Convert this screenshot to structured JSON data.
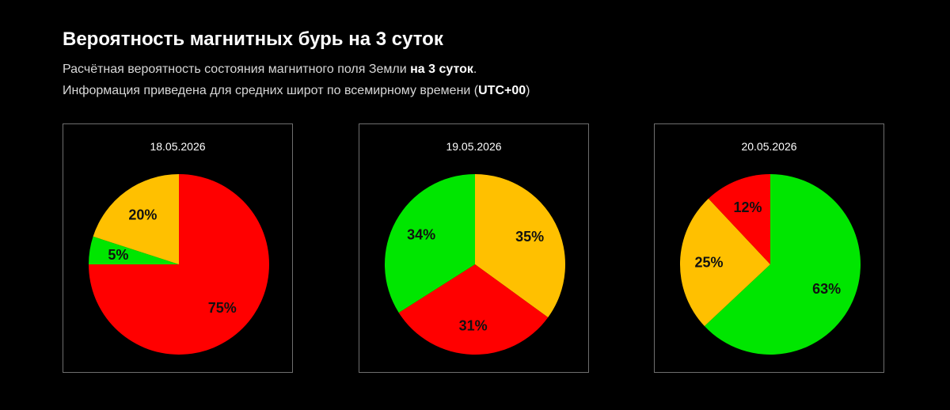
{
  "header": {
    "title": "Вероятность магнитных бурь на 3 суток",
    "line1_text": "Расчётная вероятность состояния магнитного поля Земли ",
    "line1_bold": "на 3 суток",
    "line1_end": ".",
    "line2_text": "Информация приведена для средних широт по всемирному времени (",
    "line2_bold": "UTC+00",
    "line2_end": ")"
  },
  "chart_data": [
    {
      "type": "pie",
      "title": "18.05.2026",
      "slices": [
        {
          "value": 75,
          "label": "75%",
          "color": "#ff0000"
        },
        {
          "value": 5,
          "label": "5%",
          "color": "#00e600"
        },
        {
          "value": 20,
          "label": "20%",
          "color": "#ffc000"
        }
      ]
    },
    {
      "type": "pie",
      "title": "19.05.2026",
      "slices": [
        {
          "value": 35,
          "label": "35%",
          "color": "#ffc000"
        },
        {
          "value": 31,
          "label": "31%",
          "color": "#ff0000"
        },
        {
          "value": 34,
          "label": "34%",
          "color": "#00e600"
        }
      ]
    },
    {
      "type": "pie",
      "title": "20.05.2026",
      "slices": [
        {
          "value": 63,
          "label": "63%",
          "color": "#00e600"
        },
        {
          "value": 25,
          "label": "25%",
          "color": "#ffc000"
        },
        {
          "value": 12,
          "label": "12%",
          "color": "#ff0000"
        }
      ]
    }
  ]
}
